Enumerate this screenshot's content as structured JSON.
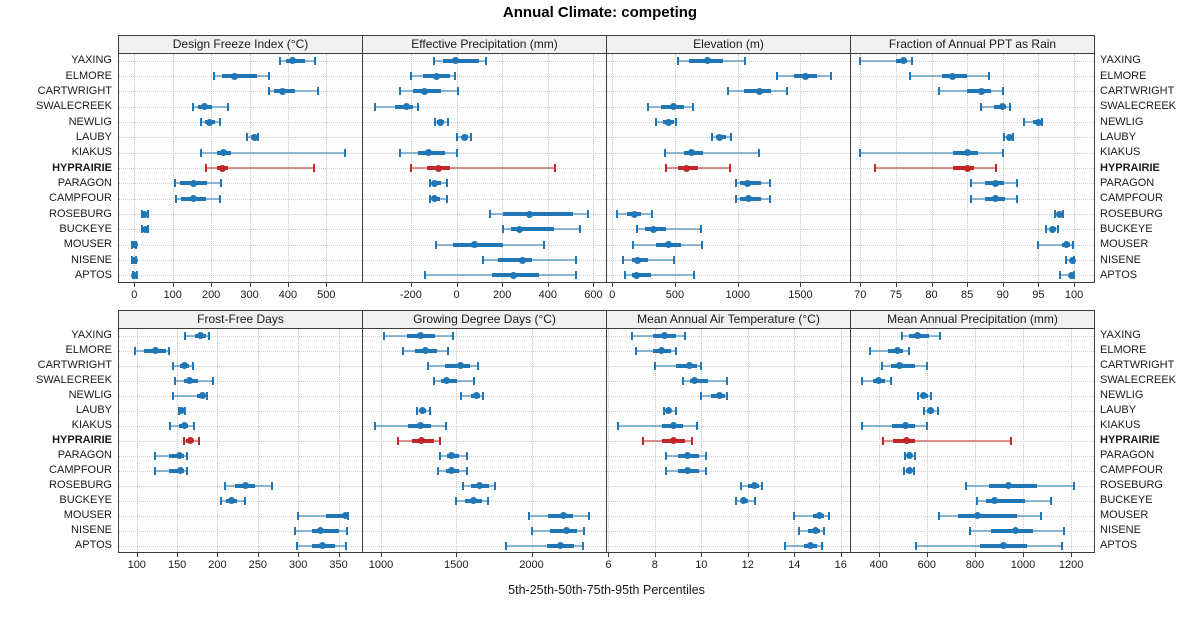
{
  "title": "Annual Climate: competing",
  "caption": "5th-25th-50th-75th-95th Percentiles",
  "sites": [
    "YAXING",
    "ELMORE",
    "CARTWRIGHT",
    "SWALECREEK",
    "NEWLIG",
    "LAUBY",
    "KIAKUS",
    "HYPRAIRIE",
    "PARAGON",
    "CAMPFOUR",
    "ROSEBURG",
    "BUCKEYE",
    "MOUSER",
    "NISENE",
    "APTOS"
  ],
  "highlight_site": "HYPRAIRIE",
  "colors": {
    "series_blue": "#2176b5",
    "series_red": "#c02726",
    "panel_header_bg": "#f0f0f0",
    "panel_border": "#3c3c3c",
    "grid": "#c8c8c8",
    "text": "#1a1a1a"
  },
  "chart_data": {
    "type": "dotplot-multipanel",
    "layout": "2 rows x 4 cols, shared site y-axis, left+right site labels",
    "percentiles": [
      5,
      25,
      50,
      75,
      95
    ],
    "grid": "dotted",
    "panels": [
      {
        "title": "Design Freeze Index (°C)",
        "ticks": [
          0,
          100,
          200,
          300,
          400,
          500
        ],
        "xlim": [
          -40,
          593
        ],
        "values": [
          [
            380,
            395,
            412,
            445,
            470
          ],
          [
            208,
            228,
            262,
            320,
            350
          ],
          [
            350,
            365,
            386,
            418,
            478
          ],
          [
            152,
            167,
            183,
            203,
            245
          ],
          [
            174,
            185,
            195,
            210,
            223
          ],
          [
            293,
            305,
            313,
            318,
            323
          ],
          [
            174,
            215,
            232,
            251,
            550
          ],
          [
            186,
            216,
            230,
            245,
            468
          ],
          [
            107,
            120,
            155,
            189,
            227
          ],
          [
            108,
            122,
            155,
            187,
            224
          ],
          [
            20,
            25,
            27,
            30,
            35
          ],
          [
            20,
            25,
            28,
            31,
            36
          ],
          [
            -5,
            -2,
            0,
            2,
            5
          ],
          [
            -5,
            -2,
            0,
            2,
            5
          ],
          [
            -4,
            -1,
            1,
            3,
            6
          ]
        ]
      },
      {
        "title": "Effective Precipitation (mm)",
        "ticks": [
          -200,
          0,
          200,
          400,
          600
        ],
        "xlim": [
          -410,
          655
        ],
        "values": [
          [
            -100,
            -60,
            -5,
            100,
            130
          ],
          [
            -200,
            -145,
            -88,
            -30,
            -5
          ],
          [
            -250,
            -190,
            -139,
            -66,
            5
          ],
          [
            -357,
            -270,
            -219,
            -190,
            -168
          ],
          [
            -95,
            -85,
            -70,
            -55,
            -38
          ],
          [
            0,
            25,
            36,
            50,
            63
          ],
          [
            -250,
            -170,
            -124,
            -50,
            0
          ],
          [
            -200,
            -130,
            -77,
            -30,
            430
          ],
          [
            -115,
            -105,
            -95,
            -70,
            -40
          ],
          [
            -118,
            -106,
            -95,
            -72,
            -42
          ],
          [
            145,
            205,
            320,
            510,
            575
          ],
          [
            205,
            240,
            275,
            425,
            540
          ],
          [
            -90,
            -15,
            80,
            205,
            385
          ],
          [
            115,
            180,
            290,
            330,
            525
          ],
          [
            -140,
            155,
            250,
            360,
            525
          ]
        ]
      },
      {
        "title": "Elevation (m)",
        "ticks": [
          0,
          500,
          1000,
          1500
        ],
        "xlim": [
          -42,
          1895
        ],
        "values": [
          [
            520,
            615,
            760,
            880,
            1060
          ],
          [
            1310,
            1450,
            1540,
            1635,
            1740
          ],
          [
            925,
            1050,
            1170,
            1265,
            1395
          ],
          [
            285,
            390,
            490,
            575,
            640
          ],
          [
            345,
            405,
            450,
            490,
            505
          ],
          [
            795,
            830,
            855,
            905,
            945
          ],
          [
            420,
            575,
            635,
            720,
            1170
          ],
          [
            430,
            520,
            595,
            680,
            940
          ],
          [
            985,
            1015,
            1080,
            1185,
            1255
          ],
          [
            985,
            1020,
            1085,
            1185,
            1255
          ],
          [
            40,
            115,
            180,
            233,
            320
          ],
          [
            200,
            260,
            325,
            430,
            710
          ],
          [
            165,
            350,
            445,
            550,
            715
          ],
          [
            85,
            155,
            205,
            285,
            490
          ],
          [
            105,
            155,
            195,
            310,
            655
          ]
        ]
      },
      {
        "title": "Fraction of Annual PPT as Rain",
        "ticks": [
          70,
          75,
          80,
          85,
          90,
          95,
          100
        ],
        "xlim": [
          68.7,
          102.8
        ],
        "values": [
          [
            70,
            75,
            76,
            76.6,
            77.2
          ],
          [
            77,
            81.5,
            83,
            85,
            88
          ],
          [
            81,
            85,
            87,
            88.3,
            90
          ],
          [
            87,
            88.8,
            90,
            90.5,
            91
          ],
          [
            93,
            94.3,
            95,
            95.2,
            95.5
          ],
          [
            90.2,
            90.6,
            91,
            91.2,
            91.5
          ],
          [
            70,
            83,
            85,
            86.5,
            90
          ],
          [
            72,
            83,
            85,
            86,
            89
          ],
          [
            85.5,
            87.5,
            89,
            90.2,
            92
          ],
          [
            85.5,
            87.5,
            89,
            90.3,
            92
          ],
          [
            97.3,
            97.8,
            98,
            98.2,
            98.5
          ],
          [
            96,
            96.6,
            97,
            97.4,
            97.8
          ],
          [
            95,
            98.3,
            99,
            99.5,
            99.9
          ],
          [
            98.9,
            99.5,
            99.8,
            99.9,
            100
          ],
          [
            98,
            99.3,
            99.7,
            99.9,
            100
          ]
        ]
      },
      {
        "title": "Frost-Free Days",
        "ticks": [
          100,
          150,
          200,
          250,
          300,
          350
        ],
        "xlim": [
          78,
          379
        ],
        "values": [
          [
            160,
            172,
            179,
            186,
            190
          ],
          [
            98,
            109,
            123,
            136,
            140
          ],
          [
            145,
            153,
            159,
            165,
            170
          ],
          [
            147,
            158,
            165,
            176,
            195
          ],
          [
            145,
            175,
            182,
            185,
            187
          ],
          [
            152,
            154,
            156,
            158,
            160
          ],
          [
            141,
            152,
            159,
            164,
            171
          ],
          [
            158,
            161,
            166,
            170,
            177
          ],
          [
            123,
            140,
            153,
            159,
            162
          ],
          [
            123,
            140,
            154,
            159,
            162
          ],
          [
            209,
            222,
            235,
            247,
            267
          ],
          [
            204,
            210,
            217,
            224,
            234
          ],
          [
            300,
            334,
            358,
            361,
            362
          ],
          [
            296,
            317,
            328,
            350,
            360
          ],
          [
            298,
            317,
            330,
            345,
            359
          ]
        ]
      },
      {
        "title": "Growing Degree Days (°C)",
        "ticks": [
          1000,
          1500,
          2000
        ],
        "xlim": [
          880,
          2495
        ],
        "values": [
          [
            1020,
            1170,
            1265,
            1360,
            1475
          ],
          [
            1145,
            1227,
            1295,
            1370,
            1445
          ],
          [
            1310,
            1425,
            1530,
            1590,
            1645
          ],
          [
            1350,
            1397,
            1433,
            1503,
            1620
          ],
          [
            1530,
            1600,
            1635,
            1660,
            1680
          ],
          [
            1240,
            1260,
            1278,
            1300,
            1325
          ],
          [
            960,
            1180,
            1265,
            1330,
            1433
          ],
          [
            1113,
            1205,
            1270,
            1349,
            1393
          ],
          [
            1390,
            1440,
            1470,
            1520,
            1570
          ],
          [
            1380,
            1430,
            1465,
            1520,
            1570
          ],
          [
            1545,
            1600,
            1655,
            1715,
            1755
          ],
          [
            1500,
            1560,
            1615,
            1670,
            1710
          ],
          [
            1985,
            2110,
            2210,
            2275,
            2380
          ],
          [
            2005,
            2120,
            2230,
            2300,
            2350
          ],
          [
            1830,
            2100,
            2190,
            2280,
            2340
          ]
        ]
      },
      {
        "title": "Mean Annual Air Temperature (°C)",
        "ticks": [
          6,
          8,
          10,
          12,
          14,
          16
        ],
        "xlim": [
          5.94,
          16.4
        ],
        "values": [
          [
            7.0,
            7.9,
            8.4,
            8.9,
            9.3
          ],
          [
            7.2,
            7.9,
            8.3,
            8.7,
            8.9
          ],
          [
            8.0,
            8.9,
            9.5,
            9.8,
            10.0
          ],
          [
            9.2,
            9.5,
            9.7,
            10.3,
            11.1
          ],
          [
            10.0,
            10.4,
            10.8,
            11.0,
            11.1
          ],
          [
            8.4,
            8.5,
            8.6,
            8.7,
            8.9
          ],
          [
            6.4,
            8.3,
            8.8,
            9.2,
            9.8
          ],
          [
            7.5,
            8.3,
            8.8,
            9.3,
            9.6
          ],
          [
            8.5,
            9.0,
            9.4,
            9.9,
            10.2
          ],
          [
            8.5,
            9.0,
            9.4,
            9.9,
            10.2
          ],
          [
            11.7,
            12.0,
            12.3,
            12.5,
            12.6
          ],
          [
            11.5,
            11.7,
            11.8,
            12.0,
            12.3
          ],
          [
            14.0,
            14.8,
            15.1,
            15.3,
            15.5
          ],
          [
            14.2,
            14.6,
            14.9,
            15.1,
            15.3
          ],
          [
            13.6,
            14.4,
            14.7,
            15.0,
            15.2
          ]
        ]
      },
      {
        "title": "Mean Annual Precipitation (mm)",
        "ticks": [
          400,
          600,
          800,
          1000,
          1200
        ],
        "xlim": [
          285,
          1295
        ],
        "values": [
          [
            495,
            528,
            563,
            611,
            655
          ],
          [
            363,
            440,
            477,
            500,
            528
          ],
          [
            415,
            452,
            487,
            549,
            600
          ],
          [
            330,
            375,
            400,
            425,
            450
          ],
          [
            565,
            578,
            588,
            605,
            618
          ],
          [
            590,
            602,
            614,
            630,
            645
          ],
          [
            330,
            455,
            510,
            550,
            600
          ],
          [
            420,
            460,
            517,
            550,
            950
          ],
          [
            508,
            518,
            528,
            540,
            549
          ],
          [
            505,
            515,
            527,
            538,
            548
          ],
          [
            765,
            860,
            938,
            1060,
            1210
          ],
          [
            810,
            845,
            880,
            1007,
            1115
          ],
          [
            650,
            728,
            811,
            976,
            1075
          ],
          [
            780,
            866,
            970,
            1040,
            1170
          ],
          [
            555,
            822,
            919,
            1018,
            1163
          ]
        ]
      }
    ]
  }
}
